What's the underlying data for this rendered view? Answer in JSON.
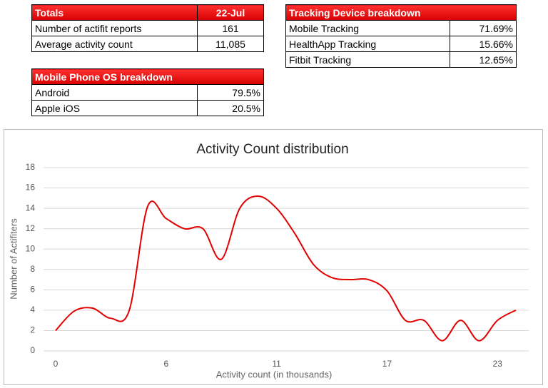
{
  "totals": {
    "header": [
      "Totals",
      "22-Jul"
    ],
    "rows": [
      [
        "Number of actifit reports",
        "161"
      ],
      [
        "Average activity count",
        "11,085"
      ]
    ]
  },
  "tracking": {
    "title": "Tracking Device breakdown",
    "rows": [
      [
        "Mobile Tracking",
        "71.69%"
      ],
      [
        "HealthApp Tracking",
        "15.66%"
      ],
      [
        "Fitbit Tracking",
        "12.65%"
      ]
    ]
  },
  "os": {
    "title": "Mobile Phone OS breakdown",
    "rows": [
      [
        "Android",
        "79.5%"
      ],
      [
        "Apple iOS",
        "20.5%"
      ]
    ]
  },
  "chart_data": {
    "type": "line",
    "title": "Activity Count distribution",
    "x_label": "Activity count (in thousands)",
    "y_label": "Number of Actifiters",
    "categories": [
      "0",
      null,
      null,
      null,
      null,
      null,
      "6",
      null,
      null,
      null,
      null,
      null,
      "11",
      null,
      null,
      null,
      null,
      null,
      "17",
      null,
      null,
      null,
      null,
      null,
      "23",
      null
    ],
    "series": [
      {
        "name": "Actifiters",
        "color": "#e00000",
        "values": [
          2,
          3.9,
          4.2,
          3.2,
          4,
          14.2,
          13,
          12,
          12,
          9,
          14,
          15.2,
          14,
          11.5,
          8.5,
          7.2,
          7,
          7,
          5.9,
          3,
          3,
          1,
          3,
          1,
          3,
          4
        ]
      }
    ],
    "ylim": [
      0,
      18
    ],
    "yticks": [
      0,
      2,
      4,
      6,
      8,
      10,
      12,
      14,
      16,
      18
    ],
    "grid": true
  }
}
